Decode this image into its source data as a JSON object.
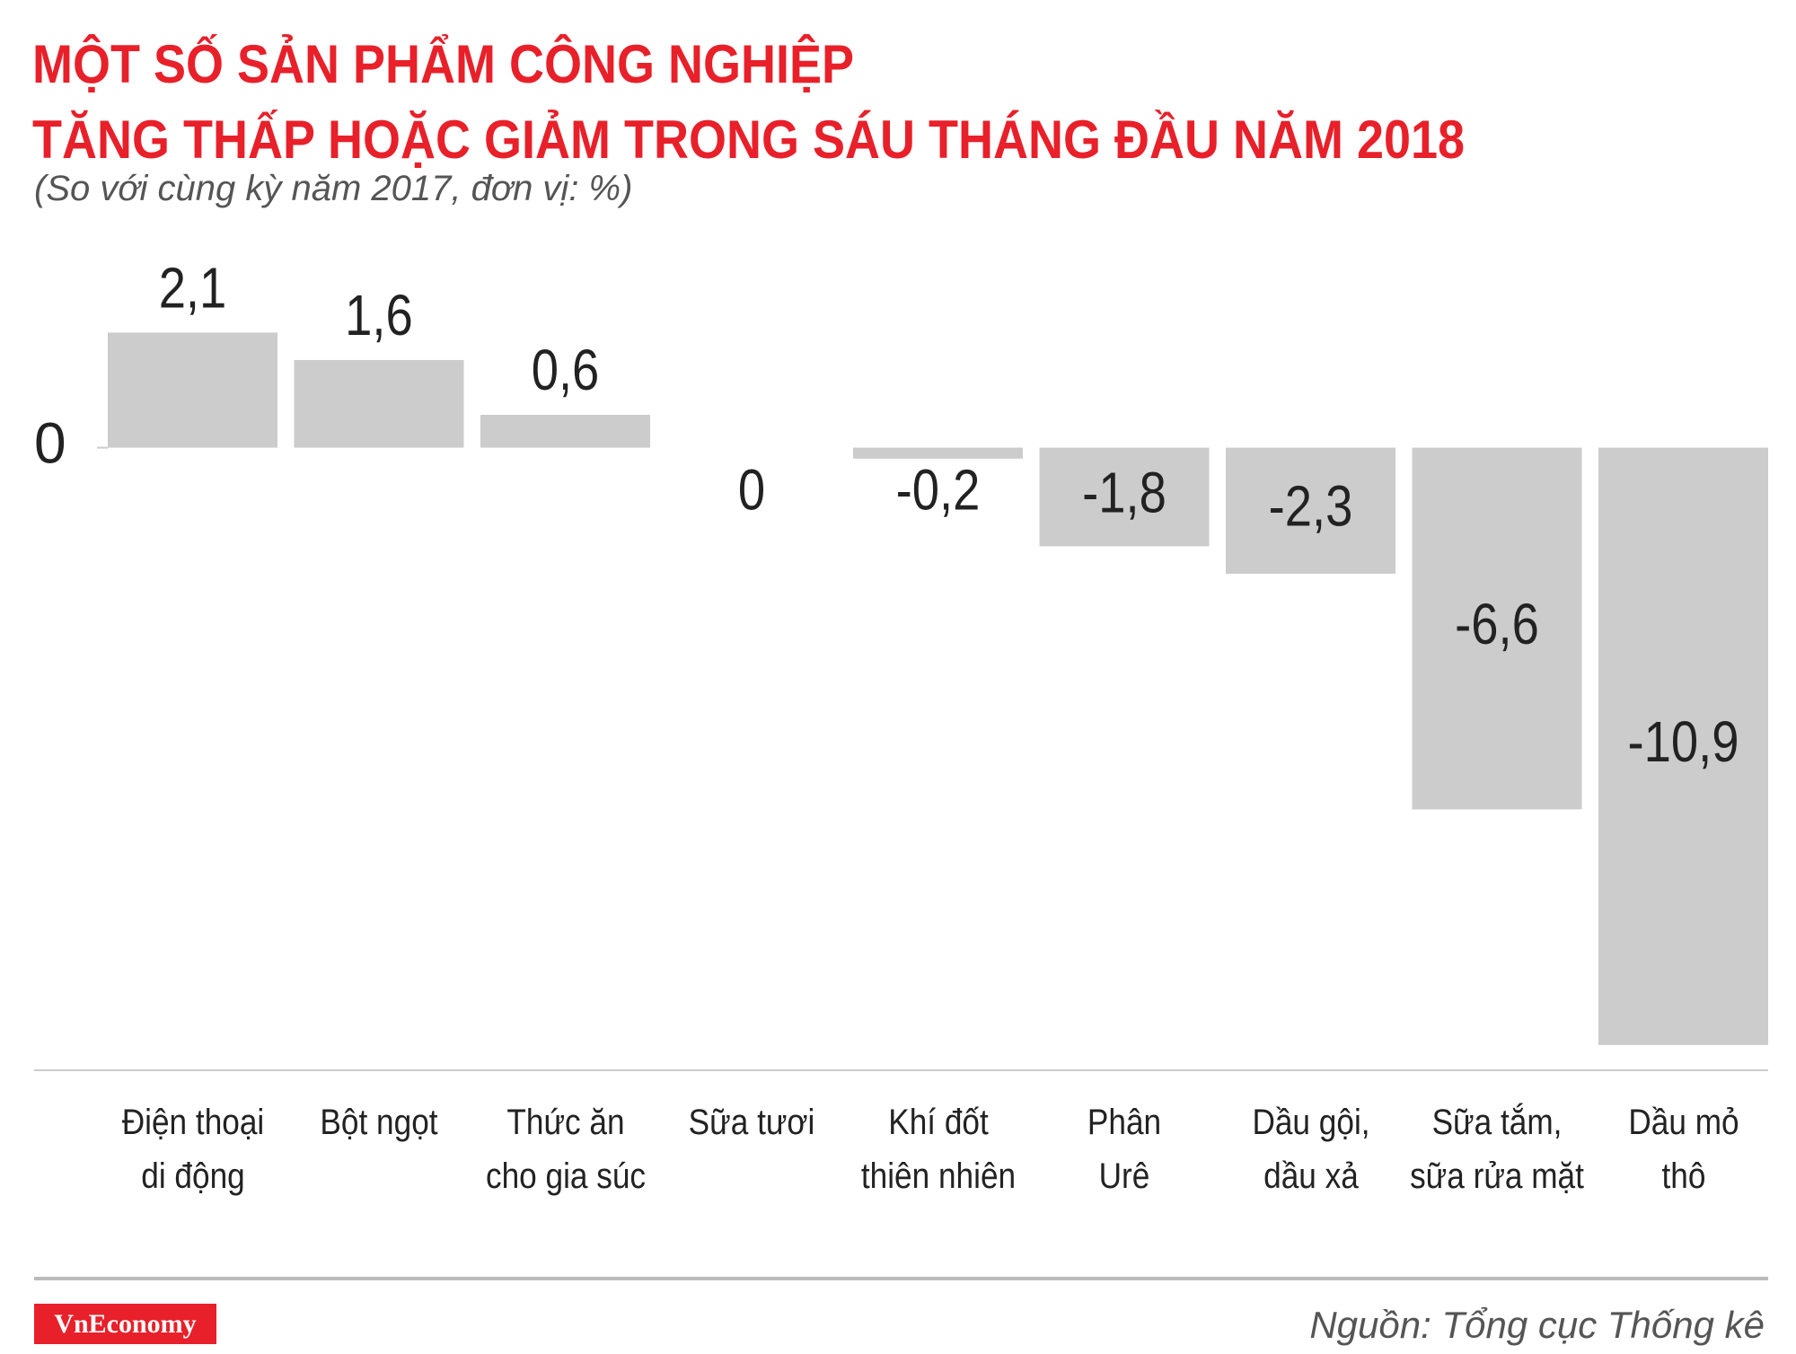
{
  "chart_data": {
    "type": "bar",
    "title": "MỘT SỐ SẢN PHẨM CÔNG NGHIỆP\nTĂNG THẤP HOẶC GIẢM TRONG SÁU THÁNG ĐẦU NĂM 2018",
    "subtitle": "(So với cùng kỳ năm 2017, đơn vị: %)",
    "categories": [
      "Điện thoại\ndi động",
      "Bột ngọt",
      "Thức ăn\ncho gia súc",
      "Sữa tươi",
      "Khí đốt\nthiên nhiên",
      "Phân\nUrê",
      "Dầu gội,\ndầu xả",
      "Sữa tắm,\nsữa rửa mặt",
      "Dầu mỏ\nthô"
    ],
    "values": [
      2.1,
      1.6,
      0.6,
      0,
      -0.2,
      -1.8,
      -2.3,
      -6.6,
      -10.9
    ],
    "value_labels": [
      "2,1",
      "1,6",
      "0,6",
      "0",
      "-0,2",
      "-1,8",
      "-2,3",
      "-6,6",
      "-10,9"
    ],
    "color": "#cccccc",
    "ylim": [
      -11,
      2.5
    ],
    "yticks": [
      0
    ],
    "source": "Nguồn: Tổng cục Thống kê",
    "brand": "VnEconomy"
  }
}
